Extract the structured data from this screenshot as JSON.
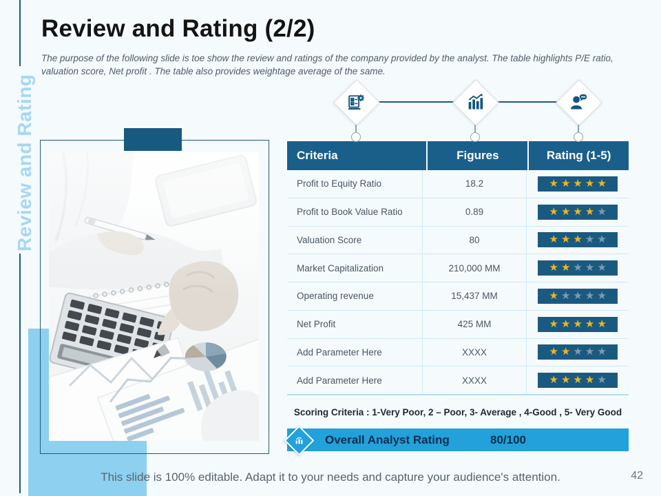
{
  "slide": {
    "title": "Review and Rating (2/2)",
    "subtitle": "The purpose of the following slide is toe show the review and ratings of the company provided by the analyst. The table highlights P/E ratio, valuation score, Net profit . The table also provides weightage average of the same.",
    "side_label": "Review and Rating",
    "footer": "This slide is 100% editable. Adapt it to your needs and capture your audience's attention.",
    "page_number": "42"
  },
  "process_icons": [
    {
      "name": "checklist-gear-icon"
    },
    {
      "name": "bar-chart-icon"
    },
    {
      "name": "person-comment-icon"
    }
  ],
  "table": {
    "headers": [
      "Criteria",
      "Figures",
      "Rating (1-5)"
    ],
    "max_stars": 5,
    "rows": [
      {
        "criteria": "Profit to Equity Ratio",
        "figure": "18.2",
        "rating": 5
      },
      {
        "criteria": "Profit to Book Value Ratio",
        "figure": "0.89",
        "rating": 4
      },
      {
        "criteria": "Valuation Score",
        "figure": "80",
        "rating": 3
      },
      {
        "criteria": "Market Capitalization",
        "figure": "210,000 MM",
        "rating": 2
      },
      {
        "criteria": "Operating revenue",
        "figure": "15,437 MM",
        "rating": 1
      },
      {
        "criteria": "Net Profit",
        "figure": "425 MM",
        "rating": 5
      },
      {
        "criteria": "Add Parameter Here",
        "figure": "XXXX",
        "rating": 2
      },
      {
        "criteria": "Add Parameter Here",
        "figure": "XXXX",
        "rating": 4
      }
    ]
  },
  "scoring_note": "Scoring Criteria : 1-Very Poor, 2 – Poor, 3- Average , 4-Good , 5- Very Good",
  "overall": {
    "label": "Overall Analyst Rating",
    "value": "80/100"
  },
  "colors": {
    "header_navy": "#1a5f8a",
    "star_bar_navy": "#1b5a80",
    "star_gold": "#eeb71f",
    "star_empty": "#7b9cb3",
    "accent_bright_blue": "#22a1db",
    "accent_sky": "#8ed0ef",
    "side_label_blue": "#a6d7f3"
  }
}
